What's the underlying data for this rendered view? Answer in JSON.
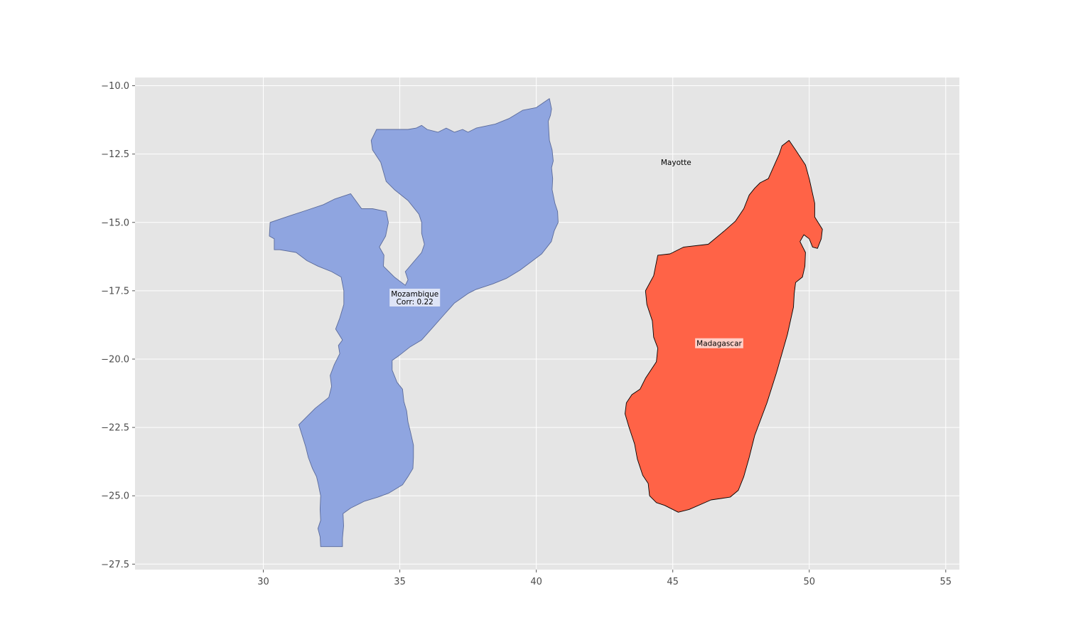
{
  "map": {
    "axes": {
      "xlim": [
        25.3,
        55.5
      ],
      "ylim": [
        -27.7,
        -9.7
      ],
      "x_ticks": [
        30,
        35,
        40,
        45,
        50,
        55
      ],
      "y_ticks": [
        -10.0,
        -12.5,
        -15.0,
        -17.5,
        -20.0,
        -22.5,
        -25.0,
        -27.5
      ],
      "x_tick_labels": [
        "30",
        "35",
        "40",
        "45",
        "50",
        "55"
      ],
      "y_tick_labels": [
        "−10.0",
        "−12.5",
        "−15.0",
        "−17.5",
        "−20.0",
        "−22.5",
        "−25.0",
        "−27.5"
      ],
      "grid": true,
      "background": "#e5e5e5",
      "grid_color": "#ffffff"
    },
    "regions": [
      {
        "name": "Mozambique",
        "label_lines": [
          "Mozambique",
          "Corr: 0.22"
        ],
        "label_at": [
          35.55,
          -17.75
        ],
        "fill": "#8fa5e0",
        "stroke": "#5b6b9a",
        "outline": [
          [
            40.48,
            -10.47
          ],
          [
            40.56,
            -10.85
          ],
          [
            40.52,
            -11.08
          ],
          [
            40.44,
            -11.3
          ],
          [
            40.46,
            -11.68
          ],
          [
            40.48,
            -12.0
          ],
          [
            40.58,
            -12.35
          ],
          [
            40.62,
            -12.75
          ],
          [
            40.56,
            -13.0
          ],
          [
            40.6,
            -13.4
          ],
          [
            40.58,
            -13.8
          ],
          [
            40.68,
            -14.3
          ],
          [
            40.78,
            -14.6
          ],
          [
            40.8,
            -15.0
          ],
          [
            40.66,
            -15.3
          ],
          [
            40.55,
            -15.7
          ],
          [
            40.2,
            -16.15
          ],
          [
            39.8,
            -16.45
          ],
          [
            39.4,
            -16.75
          ],
          [
            38.9,
            -17.05
          ],
          [
            38.4,
            -17.25
          ],
          [
            37.8,
            -17.45
          ],
          [
            37.5,
            -17.6
          ],
          [
            37.0,
            -17.95
          ],
          [
            36.6,
            -18.4
          ],
          [
            36.2,
            -18.85
          ],
          [
            35.8,
            -19.3
          ],
          [
            35.38,
            -19.55
          ],
          [
            35.0,
            -19.85
          ],
          [
            34.72,
            -20.05
          ],
          [
            34.72,
            -20.4
          ],
          [
            34.9,
            -20.85
          ],
          [
            35.1,
            -21.1
          ],
          [
            35.15,
            -21.55
          ],
          [
            35.25,
            -21.9
          ],
          [
            35.3,
            -22.3
          ],
          [
            35.4,
            -22.7
          ],
          [
            35.5,
            -23.15
          ],
          [
            35.5,
            -23.6
          ],
          [
            35.48,
            -24.0
          ],
          [
            35.3,
            -24.3
          ],
          [
            35.1,
            -24.6
          ],
          [
            34.6,
            -24.9
          ],
          [
            34.2,
            -25.05
          ],
          [
            33.7,
            -25.2
          ],
          [
            33.2,
            -25.45
          ],
          [
            32.92,
            -25.65
          ],
          [
            32.94,
            -26.1
          ],
          [
            32.9,
            -26.55
          ],
          [
            32.9,
            -26.86
          ],
          [
            32.1,
            -26.86
          ],
          [
            32.08,
            -26.5
          ],
          [
            32.0,
            -26.2
          ],
          [
            32.1,
            -25.9
          ],
          [
            32.08,
            -25.5
          ],
          [
            32.1,
            -25.0
          ],
          [
            32.02,
            -24.6
          ],
          [
            31.95,
            -24.3
          ],
          [
            31.8,
            -24.0
          ],
          [
            31.65,
            -23.6
          ],
          [
            31.55,
            -23.2
          ],
          [
            31.3,
            -22.4
          ],
          [
            31.6,
            -22.1
          ],
          [
            31.9,
            -21.8
          ],
          [
            32.4,
            -21.4
          ],
          [
            32.5,
            -21.0
          ],
          [
            32.45,
            -20.6
          ],
          [
            32.6,
            -20.2
          ],
          [
            32.8,
            -19.8
          ],
          [
            32.75,
            -19.5
          ],
          [
            32.9,
            -19.3
          ],
          [
            32.65,
            -18.9
          ],
          [
            32.8,
            -18.5
          ],
          [
            32.95,
            -18.0
          ],
          [
            32.95,
            -17.5
          ],
          [
            32.85,
            -17.0
          ],
          [
            32.5,
            -16.8
          ],
          [
            32.0,
            -16.6
          ],
          [
            31.6,
            -16.4
          ],
          [
            31.2,
            -16.1
          ],
          [
            30.6,
            -16.0
          ],
          [
            30.4,
            -16.0
          ],
          [
            30.4,
            -15.6
          ],
          [
            30.22,
            -15.5
          ],
          [
            30.25,
            -15.0
          ],
          [
            31.0,
            -14.75
          ],
          [
            31.6,
            -14.55
          ],
          [
            32.2,
            -14.35
          ],
          [
            32.6,
            -14.15
          ],
          [
            33.2,
            -13.95
          ],
          [
            33.6,
            -14.5
          ],
          [
            34.0,
            -14.5
          ],
          [
            34.5,
            -14.6
          ],
          [
            34.58,
            -15.0
          ],
          [
            34.48,
            -15.5
          ],
          [
            34.25,
            -15.9
          ],
          [
            34.42,
            -16.2
          ],
          [
            34.4,
            -16.6
          ],
          [
            34.8,
            -17.0
          ],
          [
            35.2,
            -17.3
          ],
          [
            35.3,
            -17.1
          ],
          [
            35.2,
            -16.8
          ],
          [
            35.8,
            -16.1
          ],
          [
            35.9,
            -15.8
          ],
          [
            35.8,
            -15.4
          ],
          [
            35.8,
            -15.0
          ],
          [
            35.7,
            -14.7
          ],
          [
            35.3,
            -14.2
          ],
          [
            34.8,
            -13.8
          ],
          [
            34.5,
            -13.5
          ],
          [
            34.3,
            -12.8
          ],
          [
            34.0,
            -12.35
          ],
          [
            33.95,
            -12.0
          ],
          [
            34.15,
            -11.6
          ],
          [
            35.3,
            -11.6
          ],
          [
            35.6,
            -11.55
          ],
          [
            35.8,
            -11.45
          ],
          [
            36.0,
            -11.6
          ],
          [
            36.4,
            -11.7
          ],
          [
            36.7,
            -11.55
          ],
          [
            37.0,
            -11.7
          ],
          [
            37.3,
            -11.6
          ],
          [
            37.5,
            -11.7
          ],
          [
            37.8,
            -11.55
          ],
          [
            38.5,
            -11.4
          ],
          [
            39.0,
            -11.2
          ],
          [
            39.5,
            -10.9
          ],
          [
            40.0,
            -10.8
          ]
        ]
      },
      {
        "name": "Madagascar",
        "label_lines": [
          "Madagascar"
        ],
        "label_at": [
          46.7,
          -19.42
        ],
        "fill": "#ff6347",
        "stroke": "#000000",
        "outline": [
          [
            49.26,
            -12.0
          ],
          [
            49.5,
            -12.35
          ],
          [
            49.86,
            -12.9
          ],
          [
            50.0,
            -13.4
          ],
          [
            50.2,
            -14.3
          ],
          [
            50.2,
            -14.8
          ],
          [
            50.48,
            -15.25
          ],
          [
            50.44,
            -15.6
          ],
          [
            50.3,
            -15.95
          ],
          [
            50.12,
            -15.9
          ],
          [
            50.0,
            -15.6
          ],
          [
            49.8,
            -15.45
          ],
          [
            49.66,
            -15.7
          ],
          [
            49.86,
            -16.1
          ],
          [
            49.84,
            -16.6
          ],
          [
            49.75,
            -17.0
          ],
          [
            49.5,
            -17.2
          ],
          [
            49.45,
            -17.6
          ],
          [
            49.42,
            -18.1
          ],
          [
            49.2,
            -19.1
          ],
          [
            49.0,
            -19.8
          ],
          [
            48.8,
            -20.5
          ],
          [
            48.45,
            -21.6
          ],
          [
            48.0,
            -22.8
          ],
          [
            47.8,
            -23.6
          ],
          [
            47.6,
            -24.3
          ],
          [
            47.4,
            -24.8
          ],
          [
            47.1,
            -25.05
          ],
          [
            46.4,
            -25.15
          ],
          [
            45.6,
            -25.5
          ],
          [
            45.2,
            -25.6
          ],
          [
            44.7,
            -25.35
          ],
          [
            44.4,
            -25.25
          ],
          [
            44.15,
            -25.0
          ],
          [
            44.1,
            -24.55
          ],
          [
            43.9,
            -24.25
          ],
          [
            43.7,
            -23.65
          ],
          [
            43.6,
            -23.1
          ],
          [
            43.4,
            -22.5
          ],
          [
            43.25,
            -22.0
          ],
          [
            43.3,
            -21.6
          ],
          [
            43.5,
            -21.3
          ],
          [
            43.8,
            -21.1
          ],
          [
            44.0,
            -20.7
          ],
          [
            44.4,
            -20.1
          ],
          [
            44.45,
            -19.6
          ],
          [
            44.3,
            -19.2
          ],
          [
            44.25,
            -18.6
          ],
          [
            44.05,
            -18.0
          ],
          [
            44.0,
            -17.5
          ],
          [
            44.3,
            -16.95
          ],
          [
            44.45,
            -16.2
          ],
          [
            44.9,
            -16.15
          ],
          [
            45.4,
            -15.9
          ],
          [
            46.3,
            -15.8
          ],
          [
            46.9,
            -15.3
          ],
          [
            47.3,
            -14.95
          ],
          [
            47.6,
            -14.5
          ],
          [
            47.8,
            -14.0
          ],
          [
            48.0,
            -13.75
          ],
          [
            48.2,
            -13.55
          ],
          [
            48.5,
            -13.4
          ],
          [
            48.9,
            -12.5
          ],
          [
            49.0,
            -12.2
          ]
        ]
      }
    ],
    "labels": [
      {
        "name": "Mayotte",
        "text": "Mayotte",
        "at": [
          45.12,
          -12.8
        ]
      }
    ]
  }
}
